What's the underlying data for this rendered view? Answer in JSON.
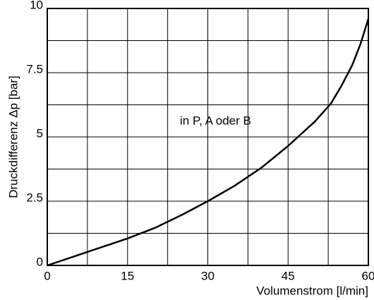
{
  "chart_data": {
    "type": "line",
    "xlabel": "Volumenstrom [l/min]",
    "ylabel": "Druckdifferenz Δp [bar]",
    "annotation": "in P, A oder B",
    "x": [
      0,
      5,
      10,
      15,
      20,
      25,
      30,
      35,
      40,
      45,
      50,
      53,
      55,
      57,
      58.5,
      60
    ],
    "series": [
      {
        "name": "in P, A oder B",
        "color": "#000000",
        "values": [
          0,
          0.35,
          0.7,
          1.05,
          1.45,
          1.95,
          2.5,
          3.1,
          3.8,
          4.65,
          5.6,
          6.3,
          7.0,
          7.8,
          8.6,
          9.6
        ]
      }
    ],
    "xlim": [
      0,
      60
    ],
    "ylim": [
      0,
      10
    ],
    "xticks": [
      0,
      15,
      30,
      45,
      60
    ],
    "yticks": [
      0,
      2.5,
      5,
      7.5,
      10
    ],
    "x_minor_ticks": [
      7.5,
      22.5,
      37.5,
      52.5
    ],
    "y_minor_ticks": [
      1.25,
      3.75,
      6.25,
      8.75
    ],
    "grid": true
  }
}
